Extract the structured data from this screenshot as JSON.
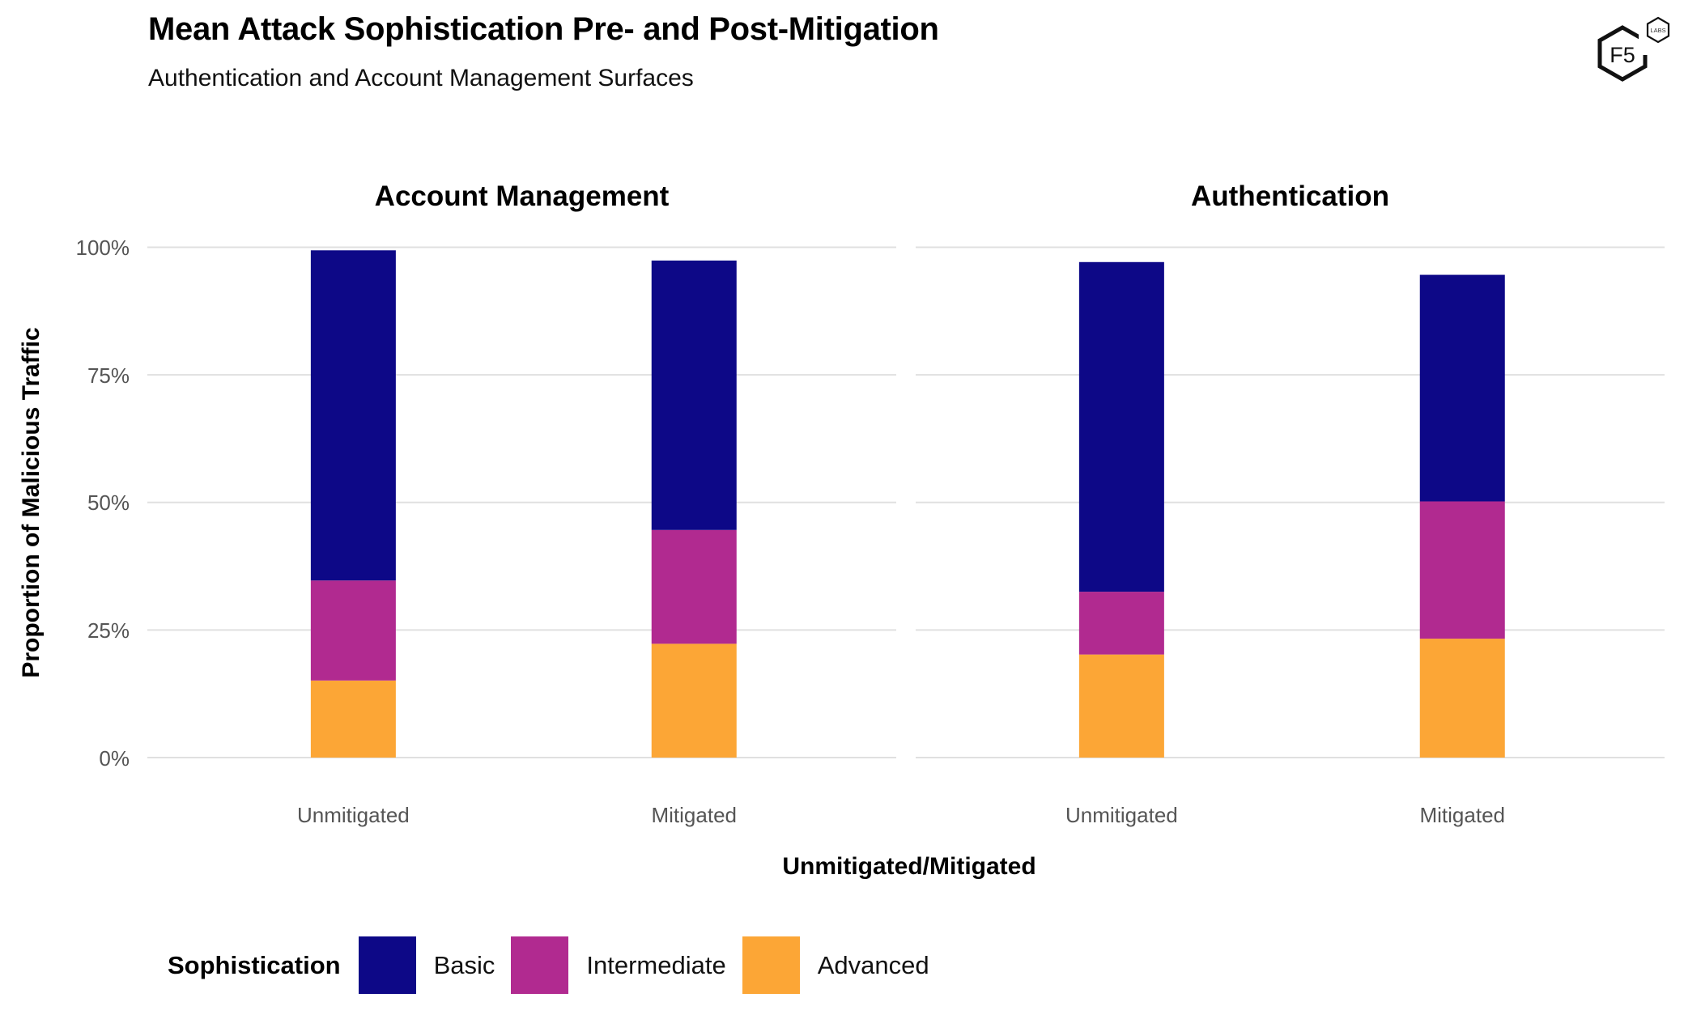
{
  "header": {
    "title": "Mean Attack Sophistication Pre- and Post-Mitigation",
    "subtitle": "Authentication and Account Management Surfaces",
    "logo": {
      "main_text": "F5",
      "badge_text": "LABS"
    }
  },
  "legend": {
    "title": "Sophistication",
    "items": [
      {
        "label": "Basic",
        "color": "#0d0887"
      },
      {
        "label": "Intermediate",
        "color": "#b12a90"
      },
      {
        "label": "Advanced",
        "color": "#fca636"
      }
    ]
  },
  "chart_data": {
    "type": "bar",
    "stacked": true,
    "title": "Mean Attack Sophistication Pre- and Post-Mitigation",
    "subtitle": "Authentication and Account Management Surfaces",
    "xlabel": "Unmitigated/Mitigated",
    "ylabel": "Proportion of Malicious Traffic",
    "ylim": [
      0,
      100
    ],
    "y_ticks": [
      0,
      25,
      50,
      75,
      100
    ],
    "y_tick_labels": [
      "0%",
      "25%",
      "50%",
      "75%",
      "100%"
    ],
    "grid": "horizontal",
    "legend_position": "bottom-left",
    "categories": [
      "Unmitigated",
      "Mitigated"
    ],
    "stack_order_bottom_to_top": [
      "Advanced",
      "Intermediate",
      "Basic"
    ],
    "facets": [
      {
        "name": "Account Management",
        "series": [
          {
            "name": "Basic",
            "color": "#0d0887",
            "values": [
              64.7,
              52.8
            ]
          },
          {
            "name": "Intermediate",
            "color": "#b12a90",
            "values": [
              19.6,
              22.3
            ]
          },
          {
            "name": "Advanced",
            "color": "#fca636",
            "values": [
              15.1,
              22.3
            ]
          }
        ]
      },
      {
        "name": "Authentication",
        "series": [
          {
            "name": "Basic",
            "color": "#0d0887",
            "values": [
              64.6,
              44.4
            ]
          },
          {
            "name": "Intermediate",
            "color": "#b12a90",
            "values": [
              12.3,
              26.9
            ]
          },
          {
            "name": "Advanced",
            "color": "#fca636",
            "values": [
              20.2,
              23.3
            ]
          }
        ]
      }
    ]
  }
}
